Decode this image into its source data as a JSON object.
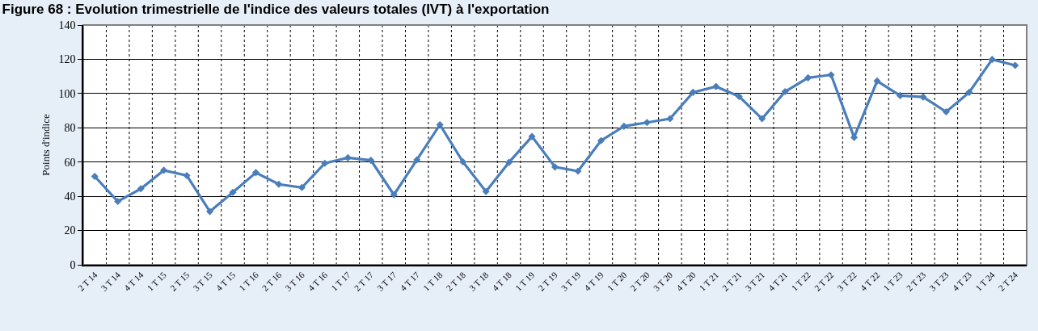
{
  "chart_data": {
    "type": "line",
    "title": "Figure 68 : Evolution trimestrielle de l'indice des valeurs totales (IVT) à l'exportation",
    "ylabel": "Points d'indice",
    "categories": [
      "2 T 14",
      "3 T 14",
      "4 T 14",
      "1 T 15",
      "2 T 15",
      "3 T 15",
      "4 T 15",
      "1 T 16",
      "2 T 16",
      "3 T 16",
      "4 T 16",
      "1 T 17",
      "2 T 17",
      "3 T 17",
      "4 T 17",
      "1 T 18",
      "2 T 18",
      "3 T 18",
      "4 T 18",
      "1 T 19",
      "2 T 19",
      "3 T 19",
      "4 T 19",
      "1 T 20",
      "2 T 20",
      "3 T 20",
      "4 T 20",
      "1 T 21",
      "2 T 21",
      "3 T 21",
      "4 T 21",
      "1 T 22",
      "2 T 22",
      "3 T 22",
      "4 T 22",
      "1 T 23",
      "2 T 23",
      "3 T 23",
      "4 T 23",
      "1 T 24",
      "2 T 24"
    ],
    "series": [
      {
        "color": "#4a7ebb",
        "values": [
          51.6,
          37.0,
          44.4,
          55.2,
          52.1,
          31.1,
          42.3,
          53.8,
          47.0,
          45.1,
          59.3,
          62.5,
          61.0,
          40.9,
          61.3,
          81.8,
          60.1,
          42.8,
          59.8,
          74.9,
          57.1,
          54.7,
          72.5,
          80.9,
          83.1,
          85.3,
          100.7,
          104.1,
          98.3,
          85.3,
          101.1,
          109.2,
          110.9,
          74.4,
          107.3,
          98.8,
          98.0,
          89.3,
          100.7,
          119.9,
          116.4
        ]
      }
    ],
    "ylim": [
      0,
      140
    ],
    "yticks": [
      0,
      20,
      40,
      60,
      80,
      100,
      120,
      140
    ],
    "grid": true,
    "marker": "diamond",
    "line_style": "solid"
  }
}
